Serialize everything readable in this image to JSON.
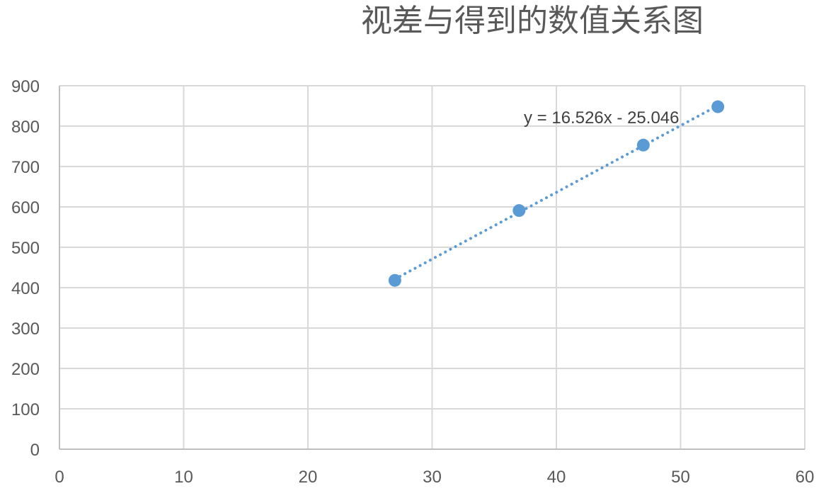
{
  "chart_data": {
    "type": "scatter",
    "title": "视差与得到的数值关系图",
    "xlabel": "",
    "ylabel": "",
    "xlim": [
      0,
      60
    ],
    "ylim": [
      0,
      900
    ],
    "x_ticks": [
      0,
      10,
      20,
      30,
      40,
      50,
      60
    ],
    "y_ticks": [
      0,
      100,
      200,
      300,
      400,
      500,
      600,
      700,
      800,
      900
    ],
    "grid": true,
    "series": [
      {
        "points": [
          {
            "x": 27,
            "y": 418
          },
          {
            "x": 37,
            "y": 591
          },
          {
            "x": 47,
            "y": 753
          },
          {
            "x": 53,
            "y": 848
          }
        ],
        "color": "#5b9bd5"
      }
    ],
    "trendline": {
      "type": "linear",
      "slope": 16.526,
      "intercept": -25.046,
      "x_range": [
        27,
        53
      ],
      "equation": "y = 16.526x - 25.046",
      "style": "dotted",
      "color": "#5b9bd5"
    }
  }
}
